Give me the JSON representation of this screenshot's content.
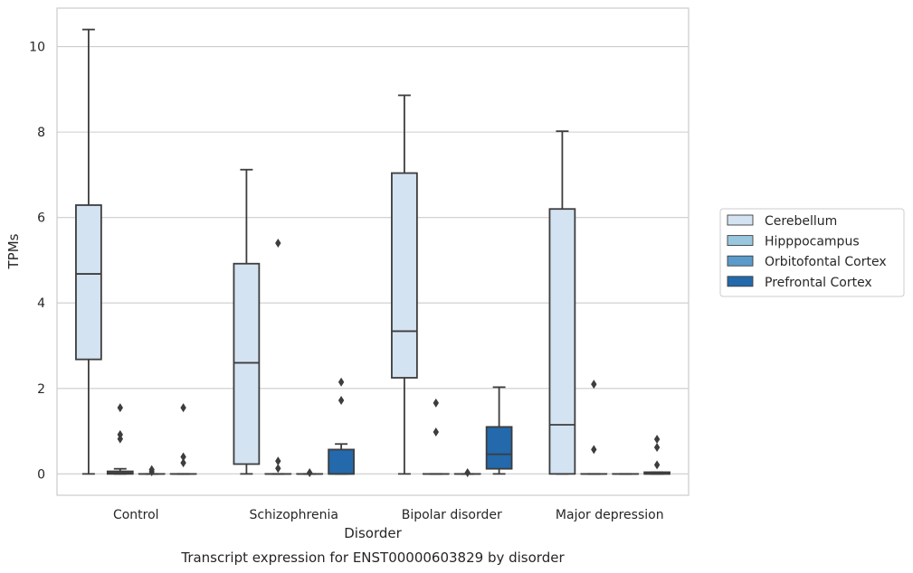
{
  "chart_data": {
    "type": "box",
    "title": "",
    "caption": "Transcript expression for ENST00000603829 by disorder",
    "xlabel": "Disorder",
    "ylabel": "TPMs",
    "ylim": [
      -0.5,
      10.9
    ],
    "yticks": [
      0,
      2,
      4,
      6,
      8,
      10
    ],
    "grid": true,
    "legend_position": "right",
    "categories": [
      "Control",
      "Schizophrenia",
      "Bipolar disorder",
      "Major depression"
    ],
    "series": [
      {
        "name": "Cerebellum",
        "color": "#d4e3f2",
        "boxes": [
          {
            "whisker_low": 0.0,
            "q1": 2.68,
            "median": 4.68,
            "q3": 6.29,
            "whisker_high": 10.4,
            "outliers": []
          },
          {
            "whisker_low": 0.0,
            "q1": 0.23,
            "median": 2.6,
            "q3": 4.92,
            "whisker_high": 7.12,
            "outliers": []
          },
          {
            "whisker_low": 0.0,
            "q1": 2.25,
            "median": 3.34,
            "q3": 7.04,
            "whisker_high": 8.86,
            "outliers": []
          },
          {
            "whisker_low": 0.0,
            "q1": 0.0,
            "median": 1.15,
            "q3": 6.2,
            "whisker_high": 8.02,
            "outliers": []
          }
        ]
      },
      {
        "name": "Hipppocampus",
        "color": "#9ac7e0",
        "boxes": [
          {
            "whisker_low": 0.0,
            "q1": 0.0,
            "median": 0.02,
            "q3": 0.06,
            "whisker_high": 0.12,
            "outliers": [
              0.82,
              0.92,
              1.55
            ]
          },
          {
            "whisker_low": 0.0,
            "q1": 0.0,
            "median": 0.0,
            "q3": 0.0,
            "whisker_high": 0.0,
            "outliers": [
              0.13,
              0.3,
              5.4
            ]
          },
          {
            "whisker_low": 0.0,
            "q1": 0.0,
            "median": 0.0,
            "q3": 0.0,
            "whisker_high": 0.0,
            "outliers": [
              0.98,
              1.66
            ]
          },
          {
            "whisker_low": 0.0,
            "q1": 0.0,
            "median": 0.0,
            "q3": 0.0,
            "whisker_high": 0.0,
            "outliers": [
              0.57,
              2.1
            ]
          }
        ]
      },
      {
        "name": "Orbitofontal Cortex",
        "color": "#5a9bcb",
        "boxes": [
          {
            "whisker_low": 0.0,
            "q1": 0.0,
            "median": 0.0,
            "q3": 0.0,
            "whisker_high": 0.0,
            "outliers": [
              0.05,
              0.1
            ]
          },
          {
            "whisker_low": 0.0,
            "q1": 0.0,
            "median": 0.0,
            "q3": 0.0,
            "whisker_high": 0.0,
            "outliers": [
              0.03
            ]
          },
          {
            "whisker_low": 0.0,
            "q1": 0.0,
            "median": 0.0,
            "q3": 0.0,
            "whisker_high": 0.0,
            "outliers": [
              0.03
            ]
          },
          {
            "whisker_low": 0.0,
            "q1": 0.0,
            "median": 0.0,
            "q3": 0.0,
            "whisker_high": 0.0,
            "outliers": []
          }
        ]
      },
      {
        "name": "Prefrontal Cortex",
        "color": "#2369ab",
        "boxes": [
          {
            "whisker_low": 0.0,
            "q1": 0.0,
            "median": 0.0,
            "q3": 0.0,
            "whisker_high": 0.0,
            "outliers": [
              0.26,
              0.4,
              1.55
            ]
          },
          {
            "whisker_low": 0.0,
            "q1": 0.0,
            "median": 0.0,
            "q3": 0.57,
            "whisker_high": 0.7,
            "outliers": [
              1.72,
              2.15
            ]
          },
          {
            "whisker_low": 0.0,
            "q1": 0.12,
            "median": 0.46,
            "q3": 1.1,
            "whisker_high": 2.03,
            "outliers": []
          },
          {
            "whisker_low": 0.0,
            "q1": 0.0,
            "median": 0.0,
            "q3": 0.04,
            "whisker_high": 0.04,
            "outliers": [
              0.21,
              0.62,
              0.81
            ]
          }
        ]
      }
    ]
  }
}
